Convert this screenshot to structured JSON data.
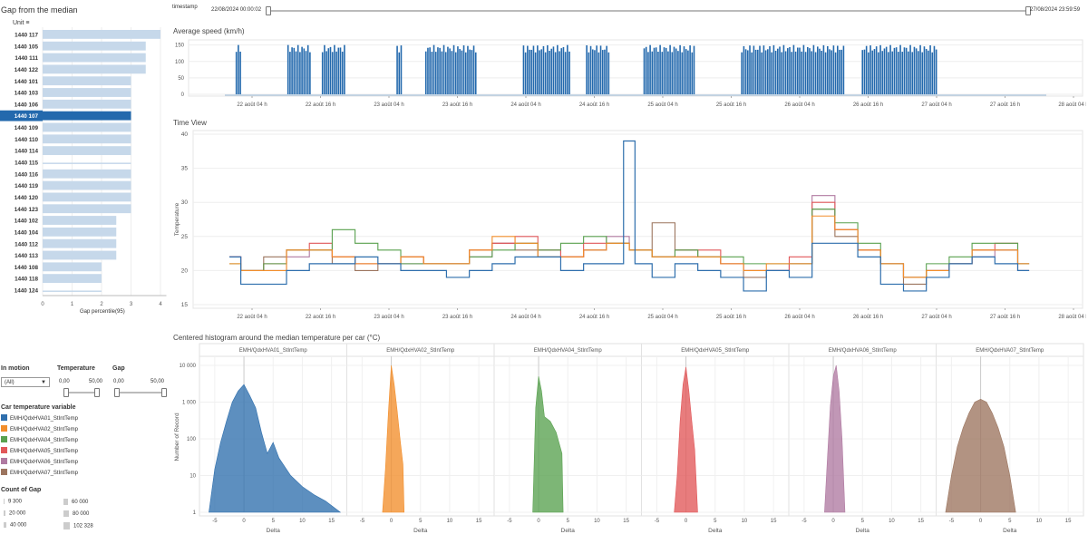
{
  "gap_panel": {
    "title": "Gap from the median",
    "unit_header": "Unit",
    "axis_ticks": [
      "0",
      "1",
      "2",
      "3",
      "4"
    ],
    "axis_label": "Gap percentile(95)",
    "selected_unit": "1440 107"
  },
  "timestamp": {
    "label": "timestamp",
    "start": "22/08/2024 00:00:02",
    "end": "27/08/2024 23:59:59",
    "range_start_fraction": 0,
    "range_end_fraction": 1
  },
  "filters": {
    "in_motion_label": "In motion",
    "in_motion_value": "(All)",
    "temperature_label": "Temperature",
    "temperature_min": "0,00",
    "temperature_max": "50,00",
    "gap_label": "Gap",
    "gap_min": "0,00",
    "gap_max": "50,00"
  },
  "legend": {
    "title": "Car temperature variable",
    "items": [
      {
        "label": "EMH/QdxHVA01_StIntTemp",
        "color": "#2f6fad"
      },
      {
        "label": "EMH/QdxHVA02_StIntTemp",
        "color": "#f28e2b"
      },
      {
        "label": "EMH/QdxHVA04_StIntTemp",
        "color": "#59a14f"
      },
      {
        "label": "EMH/QdxHVA05_StIntTemp",
        "color": "#e15759"
      },
      {
        "label": "EMH/QdxHVA06_StIntTemp",
        "color": "#b07aa1"
      },
      {
        "label": "EMH/QdxHVA07_StIntTemp",
        "color": "#9c755f"
      }
    ]
  },
  "count_legend": {
    "title": "Count of Gap",
    "items": [
      "9 300",
      "20 000",
      "40 000",
      "60 000",
      "80 000",
      "102 328"
    ]
  },
  "speed_panel": {
    "title": "Average speed (km/h)",
    "y_ticks": [
      "150",
      "100",
      "50",
      "0"
    ],
    "x_ticks": [
      "22 août 04 h",
      "22 août 16 h",
      "23 août 04 h",
      "23 août 16 h",
      "24 août 04 h",
      "24 août 16 h",
      "25 août 04 h",
      "25 août 16 h",
      "26 août 04 h",
      "26 août 16 h",
      "27 août 04 h",
      "27 août 16 h",
      "28 août 04 h"
    ]
  },
  "time_panel": {
    "title": "Time View",
    "y_label": "Temperature",
    "y_ticks": [
      "40",
      "35",
      "30",
      "25",
      "20",
      "15"
    ],
    "x_ticks": [
      "22 août 04 h",
      "22 août 16 h",
      "23 août 04 h",
      "23 août 16 h",
      "24 août 04 h",
      "24 août 16 h",
      "25 août 04 h",
      "25 août 16 h",
      "26 août 04 h",
      "26 août 16 h",
      "27 août 04 h",
      "27 août 16 h",
      "28 août 04 h"
    ]
  },
  "hist_panel": {
    "title": "Centered histogram around the median temperature per car (°C)",
    "y_label": "Number of Record",
    "y_ticks": [
      "10 000",
      "1 000",
      "100",
      "10",
      "1"
    ],
    "x_ticks": [
      "-5",
      "0",
      "5",
      "10",
      "15"
    ],
    "x_label": "Delta"
  },
  "chart_data": [
    {
      "type": "bar",
      "orientation": "horizontal",
      "categories": [
        "1440 117",
        "1440 105",
        "1440 111",
        "1440 122",
        "1440 101",
        "1440 103",
        "1440 106",
        "1440 107",
        "1440 109",
        "1440 110",
        "1440 114",
        "1440 115",
        "1440 116",
        "1440 119",
        "1440 120",
        "1440 123",
        "1440 102",
        "1440 104",
        "1440 112",
        "1440 113",
        "1440 108",
        "1440 118",
        "1440 124"
      ],
      "values": [
        4.0,
        3.5,
        3.5,
        3.5,
        3.0,
        3.0,
        3.0,
        3.0,
        3.0,
        3.0,
        3.0,
        3.0,
        3.0,
        3.0,
        3.0,
        3.0,
        2.5,
        2.5,
        2.5,
        2.5,
        2.0,
        2.0,
        2.0
      ],
      "xlabel": "Gap percentile(95)",
      "xlim": [
        0,
        4.2
      ],
      "bar_color": "#c6d8ea",
      "highlight_color": "#2369ad"
    },
    {
      "type": "area",
      "title": "Average speed (km/h)",
      "ylim": [
        0,
        160
      ],
      "x_domain": [
        0,
        143
      ],
      "active_windows": [
        [
          2,
          3
        ],
        [
          11,
          15
        ],
        [
          17,
          21
        ],
        [
          30,
          31
        ],
        [
          35,
          44
        ],
        [
          52,
          60
        ],
        [
          63,
          67
        ],
        [
          73,
          82
        ],
        [
          90,
          108
        ],
        [
          111,
          124
        ]
      ],
      "peak_value": 150,
      "color": "#2369ad"
    },
    {
      "type": "line",
      "title": "Time View",
      "ylabel": "Temperature",
      "ylim": [
        15,
        40
      ],
      "x_domain": [
        0,
        143
      ],
      "series": [
        {
          "name": "EMH/QdxHVA01_StIntTemp",
          "x": [
            0,
            4,
            8,
            12,
            16,
            20,
            24,
            28,
            32,
            36,
            40,
            44,
            48,
            52,
            56,
            60,
            64,
            68,
            70,
            72,
            76,
            80,
            84,
            88,
            92,
            96,
            100,
            104,
            108,
            112,
            116,
            120,
            124,
            128,
            132,
            136,
            140
          ],
          "y": [
            22,
            18,
            18,
            20,
            21,
            21,
            22,
            21,
            20,
            20,
            19,
            20,
            21,
            22,
            22,
            20,
            21,
            21,
            39,
            21,
            19,
            21,
            20,
            19,
            17,
            20,
            19,
            24,
            24,
            22,
            18,
            17,
            19,
            21,
            22,
            21,
            20
          ]
        },
        {
          "name": "EMH/QdxHVA02_StIntTemp",
          "x": [
            0,
            4,
            8,
            12,
            16,
            20,
            24,
            28,
            32,
            36,
            40,
            44,
            48,
            52,
            56,
            60,
            64,
            68,
            72,
            76,
            80,
            84,
            88,
            92,
            96,
            100,
            104,
            108,
            112,
            116,
            120,
            124,
            128,
            132,
            136,
            140
          ],
          "y": [
            21,
            20,
            20,
            23,
            23,
            22,
            21,
            21,
            22,
            21,
            21,
            23,
            25,
            24,
            22,
            22,
            23,
            24,
            23,
            22,
            22,
            22,
            21,
            20,
            21,
            21,
            28,
            26,
            23,
            21,
            19,
            20,
            21,
            23,
            23,
            21
          ]
        },
        {
          "name": "EMH/QdxHVA04_StIntTemp",
          "x": [
            0,
            4,
            8,
            12,
            16,
            20,
            24,
            28,
            32,
            36,
            40,
            44,
            48,
            52,
            56,
            60,
            64,
            68,
            72,
            76,
            80,
            84,
            88,
            92,
            96,
            100,
            104,
            108,
            112,
            116,
            120,
            124,
            128,
            132,
            136,
            140
          ],
          "y": [
            21,
            20,
            21,
            23,
            23,
            26,
            24,
            23,
            21,
            21,
            21,
            22,
            23,
            24,
            23,
            24,
            25,
            24,
            23,
            22,
            23,
            22,
            22,
            21,
            21,
            21,
            29,
            27,
            24,
            21,
            19,
            21,
            22,
            24,
            24,
            21
          ]
        },
        {
          "name": "EMH/QdxHVA05_StIntTemp",
          "x": [
            0,
            4,
            8,
            12,
            16,
            20,
            24,
            28,
            32,
            36,
            40,
            44,
            48,
            52,
            56,
            60,
            64,
            68,
            72,
            76,
            80,
            84,
            88,
            92,
            96,
            100,
            104,
            108,
            112,
            116,
            120,
            124,
            128,
            132,
            136,
            140
          ],
          "y": [
            22,
            20,
            21,
            23,
            24,
            22,
            21,
            21,
            22,
            21,
            21,
            23,
            24,
            25,
            23,
            22,
            24,
            24,
            23,
            22,
            23,
            23,
            21,
            20,
            20,
            22,
            30,
            26,
            23,
            21,
            19,
            20,
            21,
            23,
            24,
            20
          ]
        },
        {
          "name": "EMH/QdxHVA06_StIntTemp",
          "x": [
            0,
            4,
            8,
            12,
            16,
            20,
            24,
            28,
            32,
            36,
            40,
            44,
            48,
            52,
            56,
            60,
            64,
            68,
            72,
            76,
            80,
            84,
            88,
            92,
            96,
            100,
            104,
            108,
            112,
            116,
            120,
            124,
            128,
            132,
            136,
            140
          ],
          "y": [
            22,
            20,
            20,
            22,
            23,
            22,
            21,
            21,
            21,
            21,
            21,
            22,
            24,
            24,
            23,
            22,
            23,
            25,
            23,
            22,
            22,
            22,
            21,
            20,
            20,
            21,
            31,
            26,
            23,
            21,
            19,
            20,
            21,
            22,
            23,
            21
          ]
        },
        {
          "name": "EMH/QdxHVA07_StIntTemp",
          "x": [
            0,
            4,
            8,
            12,
            16,
            20,
            24,
            28,
            32,
            36,
            40,
            44,
            48,
            52,
            56,
            60,
            64,
            68,
            72,
            76,
            80,
            84,
            88,
            92,
            96,
            100,
            104,
            108,
            112,
            116,
            120,
            124,
            128,
            132,
            136,
            140
          ],
          "y": [
            22,
            20,
            22,
            23,
            23,
            21,
            20,
            21,
            22,
            21,
            21,
            23,
            24,
            23,
            22,
            22,
            23,
            24,
            23,
            27,
            23,
            22,
            21,
            19,
            20,
            21,
            29,
            25,
            23,
            21,
            18,
            20,
            21,
            23,
            23,
            21
          ]
        }
      ]
    },
    {
      "type": "area",
      "title": "Centered histogram around the median temperature per car (°C)",
      "ylabel": "Number of Record",
      "xlabel": "Delta",
      "y_scale": "log",
      "ylim": [
        1,
        10000
      ],
      "xlim": [
        -7,
        17
      ],
      "facets": [
        {
          "name": "EMH/QdxHVA01_StIntTemp",
          "color": "#2f6fad",
          "x": [
            -6,
            -5,
            -4,
            -3,
            -2,
            -1,
            0,
            1,
            2,
            3,
            4,
            5,
            6,
            8,
            10,
            12,
            14,
            16.5
          ],
          "y": [
            1,
            15,
            80,
            300,
            1000,
            2000,
            3000,
            1500,
            700,
            150,
            40,
            80,
            30,
            10,
            5,
            3,
            2,
            1
          ]
        },
        {
          "name": "EMH/QdxHVA02_StIntTemp",
          "color": "#f28e2b",
          "x": [
            -1.5,
            -1,
            -0.5,
            0,
            0.5,
            1,
            1.5,
            2,
            2.2
          ],
          "y": [
            1,
            15,
            500,
            10000,
            3000,
            600,
            100,
            20,
            1
          ]
        },
        {
          "name": "EMH/QdxHVA04_StIntTemp",
          "color": "#59a14f",
          "x": [
            -1,
            -0.5,
            0,
            0.5,
            1,
            2,
            3,
            4,
            4.2
          ],
          "y": [
            1,
            700,
            5000,
            2000,
            400,
            300,
            150,
            40,
            1
          ]
        },
        {
          "name": "EMH/QdxHVA05_StIntTemp",
          "color": "#e15759",
          "x": [
            -2,
            -1.5,
            -1,
            -0.5,
            0,
            0.5,
            1,
            1.5,
            2
          ],
          "y": [
            1,
            10,
            300,
            3000,
            9000,
            2000,
            300,
            50,
            1
          ]
        },
        {
          "name": "EMH/QdxHVA06_StIntTemp",
          "color": "#b07aa1",
          "x": [
            -1.5,
            -1,
            -0.5,
            0,
            0.5,
            1,
            1.5,
            2
          ],
          "y": [
            1,
            30,
            800,
            5000,
            10000,
            2000,
            100,
            1
          ]
        },
        {
          "name": "EMH/QdxHVA07_StIntTemp",
          "color": "#9c755f",
          "x": [
            -6,
            -5,
            -4,
            -3,
            -2,
            -1,
            0,
            1,
            2,
            3,
            4,
            5,
            6
          ],
          "y": [
            1,
            10,
            60,
            200,
            500,
            1000,
            1200,
            1000,
            500,
            200,
            60,
            10,
            1
          ]
        }
      ]
    }
  ]
}
